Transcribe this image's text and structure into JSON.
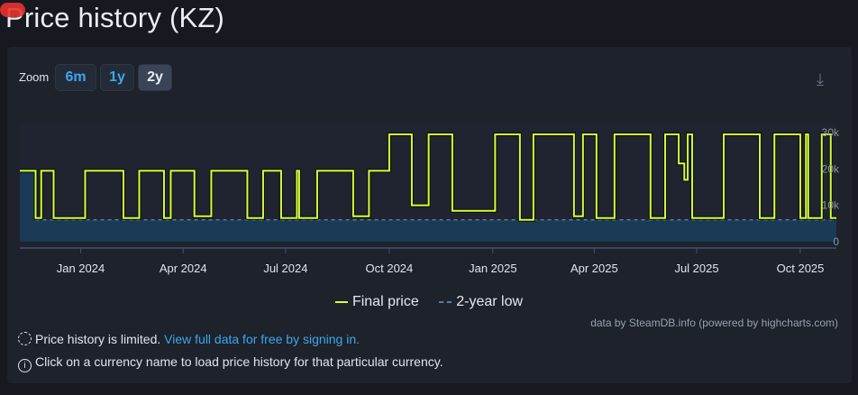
{
  "header": {
    "title": "Price history (KZ)"
  },
  "zoom": {
    "label": "Zoom",
    "buttons": [
      "6m",
      "1y",
      "2y"
    ],
    "active": "2y"
  },
  "download_icon": "download-icon",
  "colors": {
    "final_price": "#d6ff3c",
    "two_year_low": "#5d7a99",
    "low_fill": "#1b3a55",
    "plot_bg": "#1f2430"
  },
  "chart_data": {
    "type": "line",
    "step": true,
    "xaxis_ticks": [
      "Jan 2024",
      "Apr 2024",
      "Jul 2024",
      "Oct 2024",
      "Jan 2025",
      "Apr 2025",
      "Jul 2025",
      "Oct 2025"
    ],
    "xlim": [
      "2023-11-08",
      "2025-11-02"
    ],
    "yaxis_ticks": [
      "0",
      "10k",
      "20k",
      "30k"
    ],
    "ylim": [
      0,
      30000
    ],
    "legend": "bottom",
    "series": [
      {
        "name": "Final price",
        "points": [
          [
            "2023-11-08",
            19500
          ],
          [
            "2023-11-22",
            6500
          ],
          [
            "2023-11-27",
            19500
          ],
          [
            "2023-12-08",
            6500
          ],
          [
            "2024-01-05",
            19500
          ],
          [
            "2024-02-08",
            6500
          ],
          [
            "2024-02-22",
            19500
          ],
          [
            "2024-03-15",
            6500
          ],
          [
            "2024-03-21",
            19500
          ],
          [
            "2024-04-11",
            7000
          ],
          [
            "2024-04-26",
            19500
          ],
          [
            "2024-05-28",
            6500
          ],
          [
            "2024-06-11",
            19500
          ],
          [
            "2024-06-27",
            6500
          ],
          [
            "2024-07-11",
            19500
          ],
          [
            "2024-07-13",
            6500
          ],
          [
            "2024-07-29",
            19500
          ],
          [
            "2024-08-30",
            7000
          ],
          [
            "2024-09-13",
            19500
          ],
          [
            "2024-10-01",
            29500
          ],
          [
            "2024-10-21",
            10000
          ],
          [
            "2024-11-05",
            29500
          ],
          [
            "2024-11-26",
            8500
          ],
          [
            "2025-01-03",
            29500
          ],
          [
            "2025-01-25",
            6000
          ],
          [
            "2025-02-06",
            29500
          ],
          [
            "2025-03-14",
            7000
          ],
          [
            "2025-03-22",
            29500
          ],
          [
            "2025-04-03",
            6500
          ],
          [
            "2025-04-19",
            29500
          ],
          [
            "2025-05-21",
            6500
          ],
          [
            "2025-06-03",
            29500
          ],
          [
            "2025-06-15",
            21500
          ],
          [
            "2025-06-20",
            17000
          ],
          [
            "2025-06-23",
            29500
          ],
          [
            "2025-06-27",
            6500
          ],
          [
            "2025-07-25",
            29500
          ],
          [
            "2025-08-26",
            6500
          ],
          [
            "2025-09-08",
            29500
          ],
          [
            "2025-10-01",
            6500
          ],
          [
            "2025-10-06",
            29500
          ],
          [
            "2025-10-08",
            6500
          ],
          [
            "2025-10-20",
            29500
          ],
          [
            "2025-10-28",
            6500
          ],
          [
            "2025-11-02",
            6500
          ]
        ]
      },
      {
        "name": "2-year low",
        "points": [
          [
            "2023-11-08",
            19500
          ],
          [
            "2023-11-22",
            6000
          ],
          [
            "2025-11-02",
            6000
          ]
        ]
      }
    ]
  },
  "legend": {
    "final_price": "Final price",
    "two_year_low": "2-year low"
  },
  "credit": "data by SteamDB.info (powered by highcharts.com)",
  "notes": {
    "limited": "Price history is limited.",
    "signin_link": "View full data for free by signing in.",
    "currency": "Click on a currency name to load price history for that particular currency."
  }
}
